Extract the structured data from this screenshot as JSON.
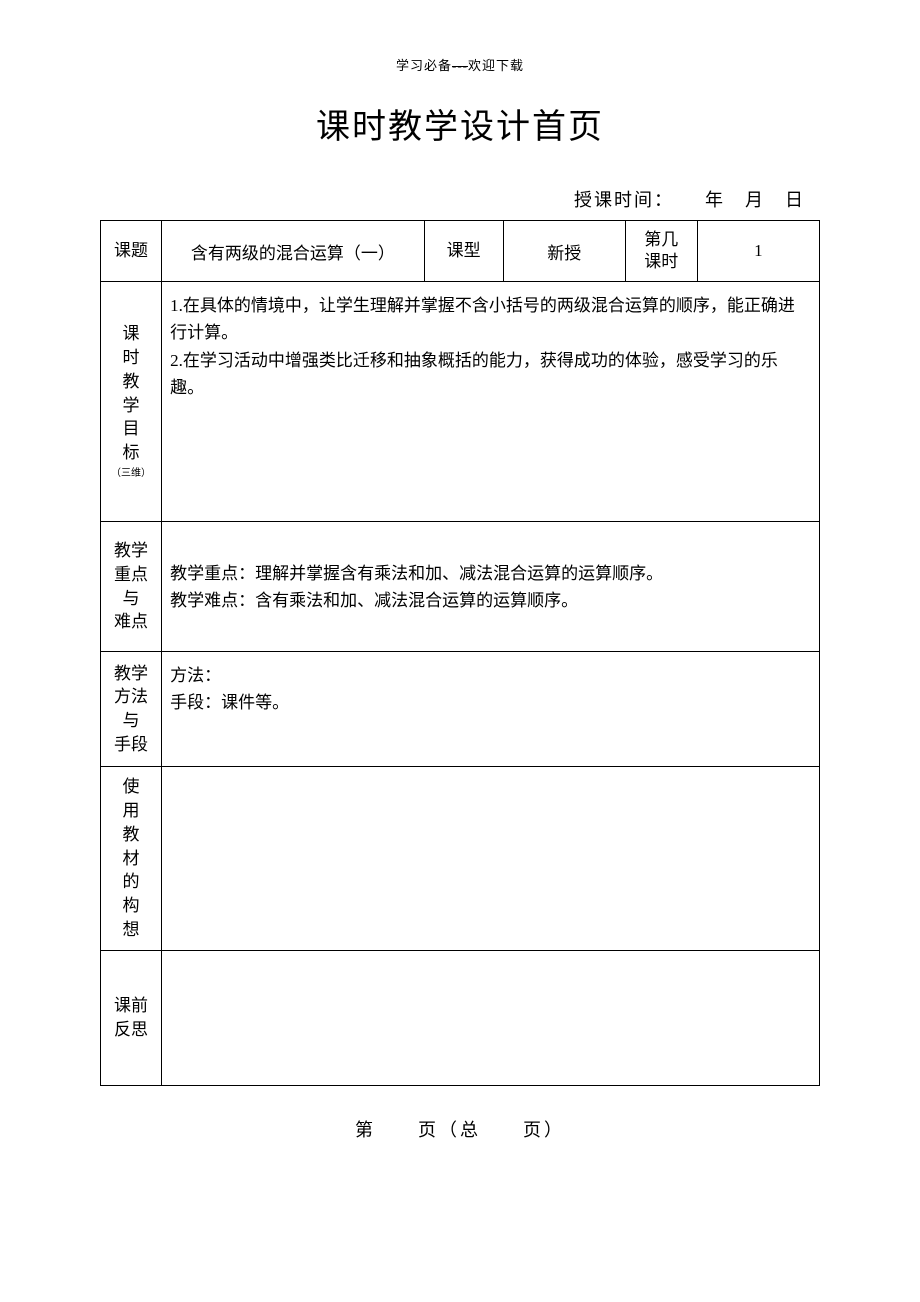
{
  "header": {
    "text_before": "学习必备",
    "separator": "---",
    "text_after": "欢迎下载"
  },
  "title": "课时教学设计首页",
  "date_line": {
    "label": "授课时间：",
    "year": "年",
    "month": "月",
    "day": "日"
  },
  "row1": {
    "topic_label": "课题",
    "topic_value": "含有两级的混合运算（一）",
    "type_label": "课型",
    "type_value": "新授",
    "period_label_line1": "第几",
    "period_label_line2": "课时",
    "period_value": "1"
  },
  "row2": {
    "label_chars": [
      "课",
      "时",
      "教",
      "学",
      "目",
      "标"
    ],
    "label_small": "（三维）",
    "content": "1.在具体的情境中，让学生理解并掌握不含小括号的两级混合运算的顺序，能正确进行计算。\n2.在学习活动中增强类比迁移和抽象概括的能力，获得成功的体验，感受学习的乐趣。"
  },
  "row3": {
    "label_chars": [
      "教学",
      "重点",
      "与",
      "难点"
    ],
    "content_line1": "教学重点：理解并掌握含有乘法和加、减法混合运算的运算顺序。",
    "content_line2": "教学难点：含有乘法和加、减法混合运算的运算顺序。"
  },
  "row4": {
    "label_chars": [
      "教学",
      "方法",
      "与",
      "手段"
    ],
    "content_line1": "方法：",
    "content_line2": "手段：课件等。"
  },
  "row5": {
    "label_chars": [
      "使",
      "用",
      "教",
      "材",
      "的",
      "构",
      "想"
    ],
    "content": ""
  },
  "row6": {
    "label_chars": [
      "课前",
      "反思"
    ],
    "content": ""
  },
  "footer": {
    "text": "第　　页（总　　页）"
  }
}
